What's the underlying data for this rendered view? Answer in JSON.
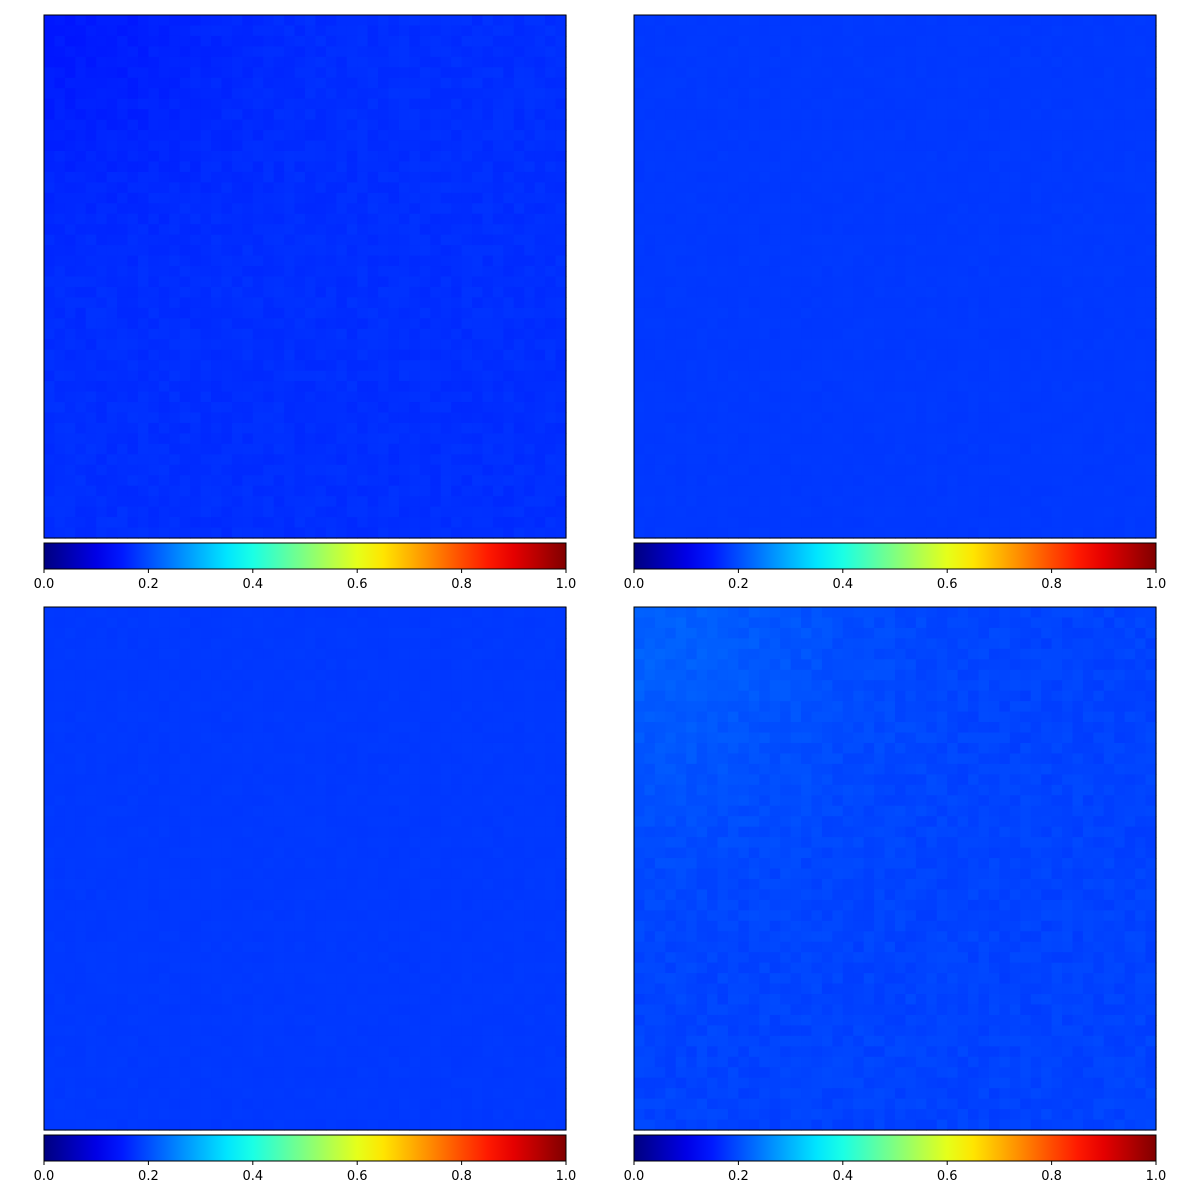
{
  "colorbar": {
    "colormap": "jet",
    "range": [
      0.0,
      1.0
    ],
    "ticks": [
      0.0,
      0.2,
      0.4,
      0.6,
      0.8,
      1.0
    ],
    "tick_labels": [
      "0.0",
      "0.2",
      "0.4",
      "0.6",
      "0.8",
      "1.0"
    ],
    "orientation": "horizontal",
    "placement": "below each heatmap"
  },
  "chart_data": [
    {
      "type": "heatmap",
      "title": "",
      "xlabel": "",
      "ylabel": "",
      "axes_ticks": "hidden",
      "grid": false,
      "vmin": 0.0,
      "vmax": 1.0,
      "grid_size": [
        50,
        50
      ],
      "approx_mean_value": 0.17,
      "approx_value_range": [
        0.15,
        0.18
      ],
      "pattern": "slightly darker blue in the upper-left region, uniform elsewhere"
    },
    {
      "type": "heatmap",
      "title": "",
      "xlabel": "",
      "ylabel": "",
      "axes_ticks": "hidden",
      "grid": false,
      "vmin": 0.0,
      "vmax": 1.0,
      "grid_size": [
        50,
        50
      ],
      "approx_mean_value": 0.18,
      "approx_value_range": [
        0.175,
        0.185
      ],
      "pattern": "nearly uniform blue"
    },
    {
      "type": "heatmap",
      "title": "",
      "xlabel": "",
      "ylabel": "",
      "axes_ticks": "hidden",
      "grid": false,
      "vmin": 0.0,
      "vmax": 1.0,
      "grid_size": [
        50,
        50
      ],
      "approx_mean_value": 0.18,
      "approx_value_range": [
        0.175,
        0.185
      ],
      "pattern": "nearly uniform blue"
    },
    {
      "type": "heatmap",
      "title": "",
      "xlabel": "",
      "ylabel": "",
      "axes_ticks": "hidden",
      "grid": false,
      "vmin": 0.0,
      "vmax": 1.0,
      "grid_size": [
        50,
        50
      ],
      "approx_mean_value": 0.19,
      "approx_value_range": [
        0.18,
        0.22
      ],
      "pattern": "lighter blue patch in the upper-left region, uniform blue elsewhere"
    }
  ]
}
